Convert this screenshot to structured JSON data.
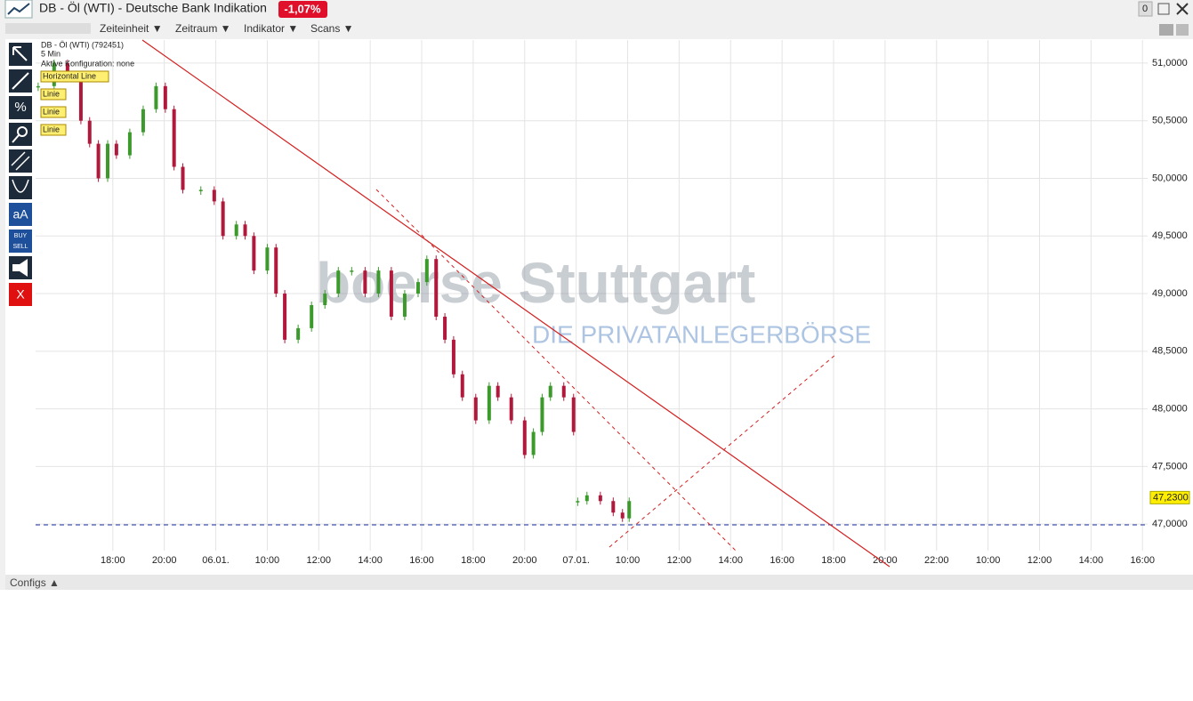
{
  "window": {
    "title": "DB - Öl (WTI) - Deutsche Bank Indikation",
    "change": "-1,07%",
    "counter": "0",
    "menu": [
      "Zeiteinheit ▼",
      "Zeitraum ▼",
      "Indikator ▼",
      "Scans ▼"
    ],
    "tools": [
      "aA",
      "BUY",
      "SELL",
      "X"
    ],
    "info": [
      "DB - Öl (WTI) (792451)",
      "5 Min",
      "Aktive Konfiguration: none"
    ],
    "drawings": [
      "Horizontal Line",
      "Linie",
      "Linie",
      "Linie"
    ],
    "watermark": [
      "boerse Stuttgart",
      "DIE PRIVATANLEGERBÖRSE"
    ],
    "footer": "Configs ▲"
  },
  "chart_data": {
    "type": "candlestick",
    "up_color": "#3c9a2c",
    "down_color": "#b0183c",
    "x": [
      -1.45,
      -1.14,
      -0.88,
      -0.62,
      -0.45,
      -0.28,
      -0.1,
      0.07,
      0.33,
      0.59,
      0.84,
      1.02,
      1.19,
      1.36,
      1.71,
      1.97,
      2.14,
      2.4,
      2.57,
      2.74,
      3.0,
      3.17,
      3.34,
      3.6,
      3.86,
      4.12,
      4.38,
      4.64,
      4.9,
      5.16,
      5.41,
      5.67,
      5.93,
      6.1,
      6.28,
      6.45,
      6.62,
      6.79,
      7.05,
      7.31,
      7.48,
      7.74,
      8.0,
      8.17,
      8.34,
      8.5,
      8.76,
      8.95,
      9.0,
      9.03,
      9.21,
      9.47,
      9.72,
      9.9,
      10.03
    ],
    "values": [
      50.8,
      51.0,
      50.9,
      50.5,
      50.3,
      50.0,
      50.3,
      50.2,
      50.4,
      50.6,
      50.8,
      50.6,
      50.1,
      49.9,
      49.9,
      49.8,
      49.5,
      49.6,
      49.5,
      49.2,
      49.4,
      49.0,
      48.6,
      48.7,
      48.9,
      49.0,
      49.2,
      49.2,
      49.0,
      49.2,
      48.8,
      49.0,
      49.1,
      49.3,
      48.8,
      48.6,
      48.3,
      48.1,
      47.9,
      48.2,
      48.1,
      47.9,
      47.6,
      47.8,
      48.1,
      48.2,
      48.1,
      47.8,
      null,
      47.2,
      47.25,
      47.2,
      47.1,
      47.05,
      47.2
    ],
    "last_label": {
      "value": 47.23,
      "label": "47,2300"
    },
    "xlim": [
      -1.5,
      20.1
    ],
    "ylim": [
      46.6,
      51.2
    ],
    "xticks": [
      {
        "value": 0,
        "label": "18:00"
      },
      {
        "value": 1,
        "label": "20:00"
      },
      {
        "value": 2,
        "label": "06.01."
      },
      {
        "value": 3,
        "label": "10:00"
      },
      {
        "value": 4,
        "label": "12:00"
      },
      {
        "value": 5,
        "label": "14:00"
      },
      {
        "value": 6,
        "label": "16:00"
      },
      {
        "value": 7,
        "label": "18:00"
      },
      {
        "value": 8,
        "label": "20:00"
      },
      {
        "value": 9,
        "label": "07.01."
      },
      {
        "value": 10,
        "label": "10:00"
      },
      {
        "value": 11,
        "label": "12:00"
      },
      {
        "value": 12,
        "label": "14:00"
      },
      {
        "value": 13,
        "label": "16:00"
      },
      {
        "value": 14,
        "label": "18:00"
      },
      {
        "value": 15,
        "label": "20:00"
      },
      {
        "value": 16,
        "label": "22:00"
      },
      {
        "value": 17,
        "label": "10:00"
      },
      {
        "value": 18,
        "label": "12:00"
      },
      {
        "value": 19,
        "label": "14:00"
      },
      {
        "value": 20,
        "label": "16:00"
      }
    ],
    "yticks": [
      {
        "value": 47,
        "label": "47,0000"
      },
      {
        "value": 47.5,
        "label": "47,5000"
      },
      {
        "value": 48,
        "label": "48,0000"
      },
      {
        "value": 48.5,
        "label": "48,5000"
      },
      {
        "value": 49,
        "label": "49,0000"
      },
      {
        "value": 49.5,
        "label": "49,5000"
      },
      {
        "value": 50,
        "label": "50,0000"
      },
      {
        "value": 50.5,
        "label": "50,5000"
      },
      {
        "value": 51,
        "label": "51,0000"
      }
    ],
    "grid": true
  }
}
